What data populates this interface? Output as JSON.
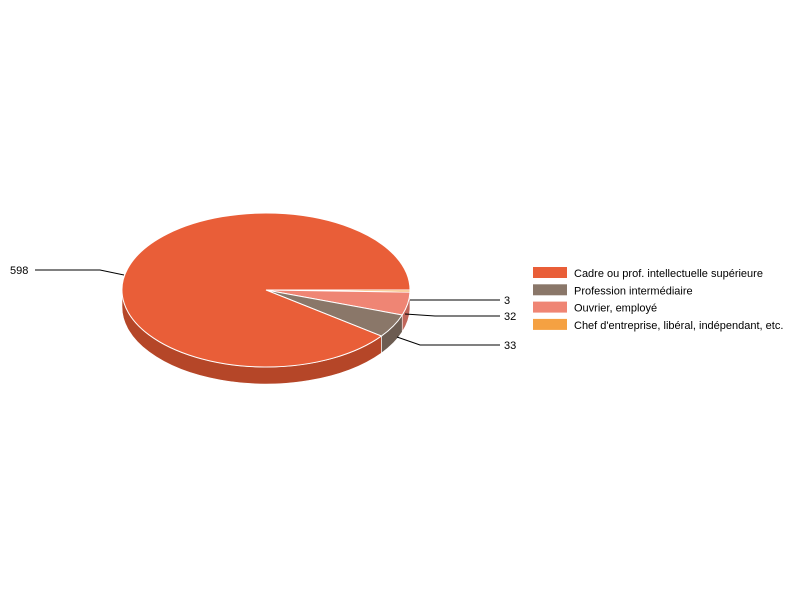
{
  "chart_data": {
    "type": "pie",
    "style": "3d",
    "categories": [
      "Cadre ou prof. intellectuelle supérieure",
      "Profession intermédiaire",
      "Ouvrier, employé",
      "Chef d'entreprise, libéral, indépendant, etc."
    ],
    "values": [
      598,
      33,
      32,
      3
    ],
    "colors": [
      "#e95e38",
      "#8a7769",
      "#ef8574",
      "#f5a142"
    ],
    "side_colors": [
      "#b54628",
      "#6c5c51",
      "#c0665a",
      "#c47e32"
    ],
    "data_labels": [
      "598",
      "33",
      "32",
      "3"
    ],
    "legend_placement": "right"
  }
}
